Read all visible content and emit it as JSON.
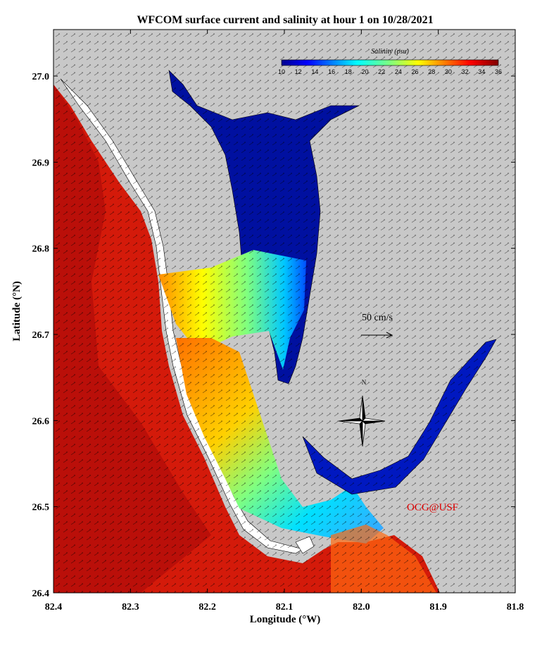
{
  "title": "WFCOM surface current and salinity at hour 1 on 10/28/2021",
  "x_axis": {
    "label": "Longitude (°W)",
    "ticks": [
      "82.4",
      "82.3",
      "82.2",
      "82.1",
      "82.0",
      "81.9",
      "81.8"
    ]
  },
  "y_axis": {
    "label": "Latitude (°N)",
    "ticks": [
      "27.0",
      "26.9",
      "26.8",
      "26.7",
      "26.6",
      "26.5",
      "26.4"
    ]
  },
  "colorbar": {
    "label": "Salinity (psu)",
    "ticks": [
      "10",
      "12",
      "14",
      "16",
      "18",
      "20",
      "22",
      "24",
      "26",
      "28",
      "30",
      "32",
      "34",
      "36"
    ]
  },
  "scale_label": "50 cm/s",
  "compass_label": "N",
  "credit": "OCG@USF"
}
